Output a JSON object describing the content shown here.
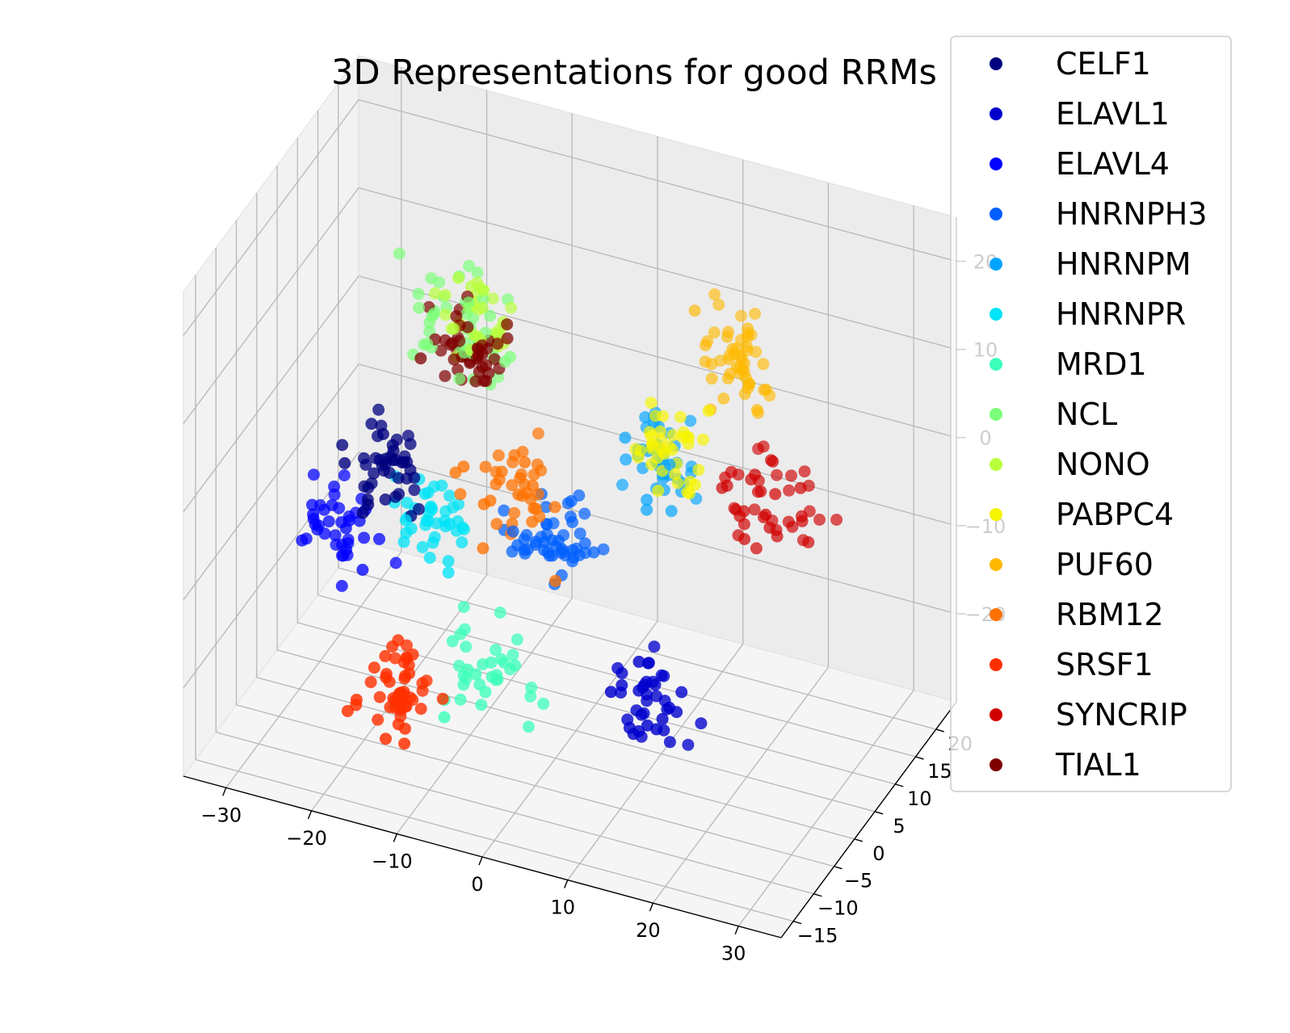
{
  "chart_data": {
    "type": "scatter",
    "projection": "3d",
    "title": "3D Representations for good RRMs",
    "xlabel": "",
    "ylabel": "",
    "zlabel": "",
    "grid": true,
    "legend_position": "top-right",
    "xlim": [
      -35,
      35
    ],
    "ylim": [
      -18,
      25
    ],
    "zlim": [
      -30,
      25
    ],
    "x_ticks": [
      "−30",
      "−20",
      "−10",
      "0",
      "10",
      "20",
      "30"
    ],
    "y_ticks": [
      "−15",
      "−10",
      "−5",
      "0",
      "5",
      "10",
      "15",
      "20"
    ],
    "z_ticks": [
      "−20",
      "−10",
      "0",
      "10",
      "20"
    ],
    "series": [
      {
        "name": "CELF1",
        "color": "#00007f",
        "center": [
          -20,
          0,
          -2
        ],
        "count": 45,
        "spread": 2.5
      },
      {
        "name": "ELAVL1",
        "color": "#0000cd",
        "center": [
          12,
          -3,
          -18
        ],
        "count": 40,
        "spread": 2.5
      },
      {
        "name": "ELAVL4",
        "color": "#0000ff",
        "center": [
          -26,
          2,
          -12
        ],
        "count": 40,
        "spread": 2.5
      },
      {
        "name": "HNRNPH3",
        "color": "#0060ff",
        "center": [
          -2,
          4,
          -8
        ],
        "count": 50,
        "spread": 2.5
      },
      {
        "name": "HNRNPM",
        "color": "#00a4ff",
        "center": [
          8,
          8,
          0
        ],
        "count": 40,
        "spread": 2.5
      },
      {
        "name": "HNRNPR",
        "color": "#00e4f7",
        "center": [
          -16,
          2,
          -8
        ],
        "count": 40,
        "spread": 2.5
      },
      {
        "name": "MRD1",
        "color": "#3cffba",
        "center": [
          -8,
          0,
          -22
        ],
        "count": 35,
        "spread": 3
      },
      {
        "name": "NCL",
        "color": "#7cff79",
        "center": [
          -14,
          6,
          12
        ],
        "count": 45,
        "spread": 3
      },
      {
        "name": "NONO",
        "color": "#b9ff3c",
        "center": [
          -12,
          6,
          14
        ],
        "count": 35,
        "spread": 2.5
      },
      {
        "name": "PABPC4",
        "color": "#f7f400",
        "center": [
          10,
          6,
          4
        ],
        "count": 40,
        "spread": 2.5
      },
      {
        "name": "PUF60",
        "color": "#ffb900",
        "center": [
          16,
          12,
          12
        ],
        "count": 50,
        "spread": 3
      },
      {
        "name": "RBM12",
        "color": "#ff7200",
        "center": [
          -6,
          2,
          -2
        ],
        "count": 40,
        "spread": 3
      },
      {
        "name": "SRSF1",
        "color": "#ff3000",
        "center": [
          -16,
          -4,
          -24
        ],
        "count": 50,
        "spread": 2.5
      },
      {
        "name": "SYNCRIP",
        "color": "#d00000",
        "center": [
          22,
          8,
          0
        ],
        "count": 45,
        "spread": 3
      },
      {
        "name": "TIAL1",
        "color": "#7f0000",
        "center": [
          -12,
          4,
          10
        ],
        "count": 45,
        "spread": 2.5
      }
    ]
  }
}
